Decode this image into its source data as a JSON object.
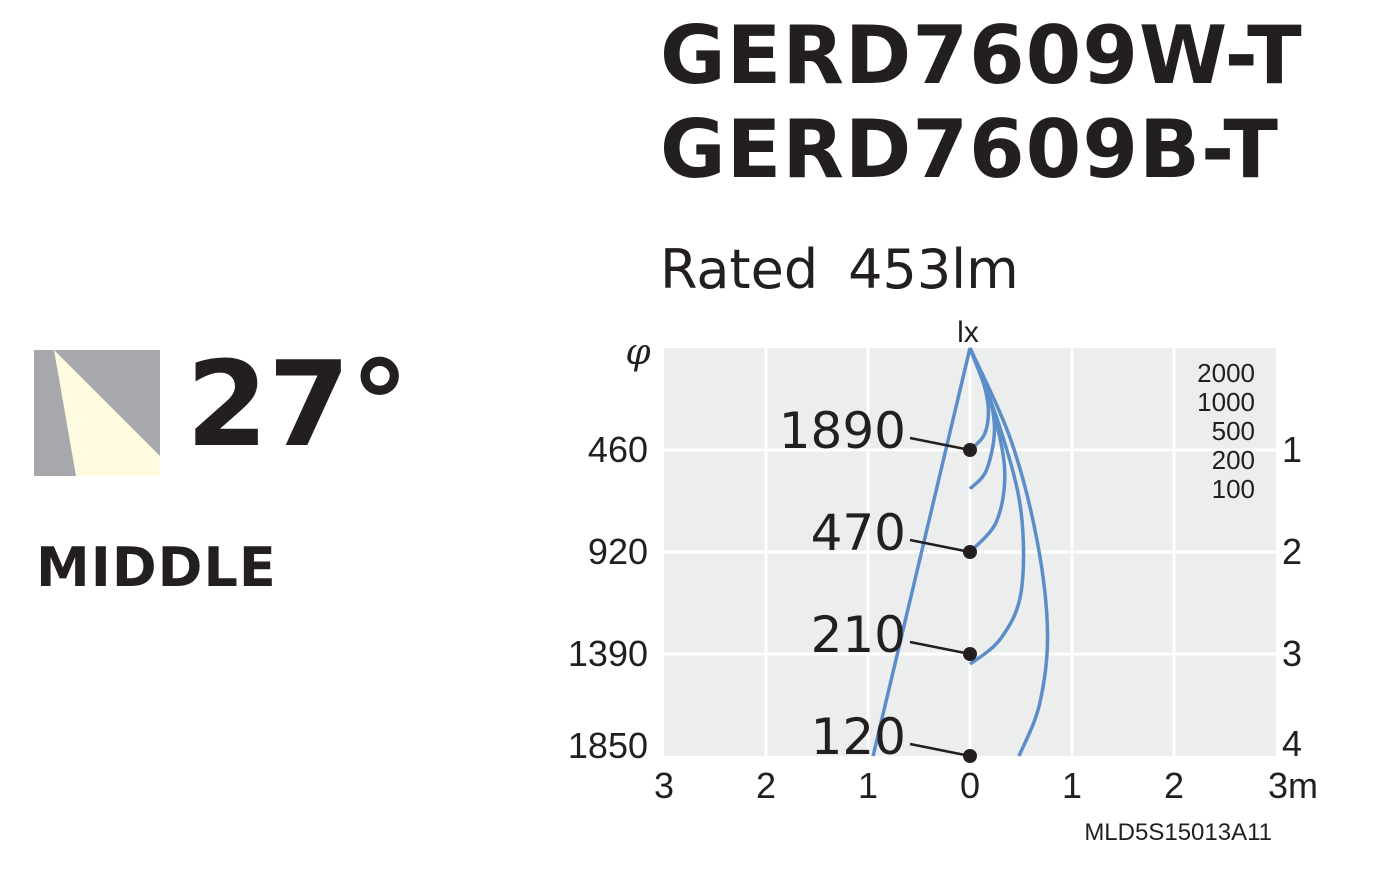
{
  "header": {
    "model_lines": [
      "GERD7609W-T",
      "GERD7609B-T"
    ],
    "rated_label": "Rated",
    "rated_value": "453lm"
  },
  "beam": {
    "angle": "27°",
    "class_label": "MIDDLE",
    "icon": "beam-angle-icon",
    "icon_colors": {
      "background": "#a6a8ab",
      "beam": "#fffbe1"
    }
  },
  "chart_data": {
    "type": "line",
    "x": {
      "ticks": [
        "3",
        "2",
        "1",
        "0",
        "1",
        "2",
        "3m"
      ],
      "range": [
        -3,
        3
      ],
      "unit": "m"
    },
    "y_right": {
      "ticks": [
        "1",
        "2",
        "3",
        "4"
      ],
      "range": [
        0,
        4
      ]
    },
    "y_left_label": "φ",
    "y_left_ticks": [
      {
        "distance": 1,
        "label": "460"
      },
      {
        "distance": 2,
        "label": "920"
      },
      {
        "distance": 3,
        "label": "1390"
      },
      {
        "distance": 3.9,
        "label": "1850"
      }
    ],
    "top_label": "lx",
    "illuminance_legend": [
      "2000",
      "1000",
      "500",
      "200",
      "100"
    ],
    "center_illuminance": [
      {
        "distance": 1,
        "value": "1890"
      },
      {
        "distance": 2,
        "value": "470"
      },
      {
        "distance": 3,
        "value": "210"
      },
      {
        "distance": 4,
        "value": "120"
      }
    ],
    "beam_edge_line": {
      "from": [
        0,
        0
      ],
      "to": [
        -0.95,
        4
      ]
    },
    "isolux_curves": [
      {
        "level": 2000,
        "points": [
          [
            0,
            0
          ],
          [
            0.12,
            0.3
          ],
          [
            0.18,
            0.6
          ],
          [
            0.14,
            0.85
          ],
          [
            0,
            1.0
          ]
        ]
      },
      {
        "level": 1000,
        "points": [
          [
            0,
            0
          ],
          [
            0.17,
            0.4
          ],
          [
            0.24,
            0.8
          ],
          [
            0.16,
            1.2
          ],
          [
            0,
            1.38
          ]
        ]
      },
      {
        "level": 500,
        "points": [
          [
            0,
            0
          ],
          [
            0.22,
            0.6
          ],
          [
            0.34,
            1.2
          ],
          [
            0.26,
            1.7
          ],
          [
            0,
            2.0
          ]
        ]
      },
      {
        "level": 200,
        "points": [
          [
            0,
            0
          ],
          [
            0.3,
            0.8
          ],
          [
            0.5,
            1.6
          ],
          [
            0.5,
            2.4
          ],
          [
            0.3,
            2.85
          ],
          [
            0,
            3.1
          ]
        ]
      },
      {
        "level": 100,
        "points": [
          [
            0,
            0
          ],
          [
            0.4,
            0.9
          ],
          [
            0.66,
            1.9
          ],
          [
            0.76,
            2.8
          ],
          [
            0.68,
            3.5
          ],
          [
            0.48,
            4.0
          ]
        ]
      }
    ],
    "colors": {
      "curve": "#5b8ec9",
      "grid_bg": "#eceded",
      "grid_line": "#ffffff",
      "dot": "#231f20"
    },
    "footnote": "MLD5S15013A11"
  }
}
